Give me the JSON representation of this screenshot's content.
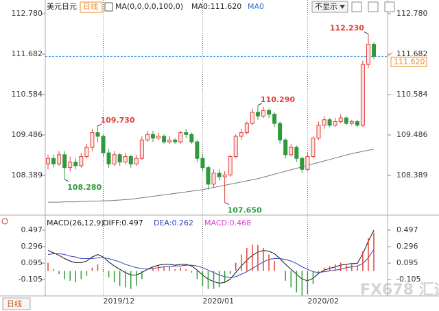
{
  "chart_data": [
    {
      "type": "candlestick",
      "title": "美元日元",
      "period": "日线",
      "ma_setting": "MA(0,0,0,0,100,0)",
      "ma_value": "MA0:111.620",
      "ma_name": "MA0",
      "dropdown": "不显示",
      "categories": [
        null,
        null,
        null,
        null,
        null,
        null,
        null,
        null,
        null,
        null,
        "2019/12",
        null,
        null,
        null,
        null,
        null,
        null,
        null,
        null,
        null,
        null,
        null,
        null,
        null,
        null,
        null,
        null,
        null,
        "2020/01",
        null,
        null,
        null,
        null,
        null,
        null,
        null,
        null,
        null,
        null,
        null,
        null,
        null,
        null,
        null,
        null,
        null,
        null,
        "2020/02",
        null,
        null,
        null,
        null,
        null,
        null,
        null,
        null,
        null,
        null,
        null,
        null
      ],
      "open": [
        108.7,
        108.85,
        108.7,
        108.95,
        108.6,
        108.75,
        108.65,
        108.9,
        109.15,
        109.55,
        109.45,
        109.0,
        108.7,
        108.95,
        108.75,
        108.9,
        108.7,
        108.85,
        109.35,
        109.5,
        109.4,
        109.45,
        109.3,
        109.35,
        109.3,
        109.55,
        109.5,
        109.3,
        108.85,
        108.6,
        108.15,
        108.45,
        108.35,
        108.4,
        108.9,
        109.45,
        109.55,
        109.8,
        110.1,
        110.0,
        110.15,
        110.05,
        109.8,
        109.35,
        108.95,
        109.15,
        108.85,
        108.55,
        108.9,
        109.4,
        109.75,
        109.9,
        109.75,
        109.85,
        109.95,
        109.8,
        109.85,
        109.75,
        111.4,
        111.95
      ],
      "high": [
        108.95,
        108.95,
        109.05,
        109.05,
        108.9,
        108.85,
        109.0,
        109.25,
        109.65,
        109.73,
        109.5,
        109.1,
        109.05,
        109.0,
        109.0,
        108.95,
        108.95,
        109.45,
        109.6,
        109.6,
        109.55,
        109.5,
        109.45,
        109.4,
        109.6,
        109.65,
        109.55,
        109.35,
        108.95,
        108.65,
        108.55,
        108.55,
        108.5,
        108.95,
        109.5,
        109.65,
        109.85,
        110.2,
        110.29,
        110.25,
        110.2,
        110.1,
        109.85,
        109.4,
        109.25,
        109.2,
        108.9,
        109.0,
        109.45,
        109.85,
        110.0,
        109.95,
        109.95,
        110.05,
        110.0,
        109.9,
        109.9,
        111.5,
        112.23,
        112.0
      ],
      "low": [
        108.55,
        108.6,
        108.65,
        108.28,
        108.5,
        108.55,
        108.6,
        108.85,
        109.05,
        109.3,
        108.9,
        108.6,
        108.65,
        108.65,
        108.7,
        108.6,
        108.65,
        108.8,
        109.3,
        109.3,
        109.35,
        109.25,
        109.25,
        109.25,
        109.25,
        109.4,
        109.25,
        108.75,
        108.5,
        108.0,
        108.05,
        108.25,
        107.65,
        108.35,
        108.85,
        109.35,
        109.5,
        109.75,
        109.9,
        109.95,
        109.95,
        109.7,
        109.25,
        108.85,
        108.9,
        108.75,
        108.45,
        108.5,
        108.85,
        109.35,
        109.65,
        109.7,
        109.7,
        109.8,
        109.75,
        109.75,
        109.7,
        109.7,
        111.3,
        111.55
      ],
      "close": [
        108.85,
        108.7,
        108.95,
        108.6,
        108.75,
        108.65,
        108.9,
        109.15,
        109.55,
        109.45,
        109.0,
        108.7,
        108.95,
        108.75,
        108.9,
        108.7,
        108.85,
        109.35,
        109.5,
        109.4,
        109.45,
        109.3,
        109.35,
        109.3,
        109.55,
        109.5,
        109.3,
        108.85,
        108.6,
        108.15,
        108.45,
        108.35,
        108.4,
        108.9,
        109.45,
        109.55,
        109.8,
        110.1,
        110.0,
        110.15,
        110.05,
        109.8,
        109.35,
        108.95,
        109.15,
        108.85,
        108.55,
        108.9,
        109.4,
        109.75,
        109.9,
        109.75,
        109.85,
        109.95,
        109.8,
        109.85,
        109.75,
        111.4,
        111.95,
        111.62
      ],
      "up_color": "#e0403a",
      "down_color": "#2e9a3c",
      "ma": {
        "color": "#777777",
        "values": [
          107.66,
          107.66,
          107.66,
          107.67,
          107.67,
          107.67,
          107.68,
          107.68,
          107.69,
          107.69,
          107.7,
          107.7,
          107.71,
          107.72,
          107.73,
          107.74,
          107.76,
          107.78,
          107.8,
          107.82,
          107.84,
          107.86,
          107.88,
          107.9,
          107.92,
          107.94,
          107.96,
          107.98,
          108.0,
          108.03,
          108.06,
          108.09,
          108.12,
          108.15,
          108.18,
          108.21,
          108.24,
          108.27,
          108.3,
          108.34,
          108.38,
          108.42,
          108.46,
          108.5,
          108.54,
          108.58,
          108.62,
          108.66,
          108.7,
          108.74,
          108.78,
          108.82,
          108.86,
          108.9,
          108.94,
          108.98,
          109.01,
          109.04,
          109.07,
          109.1
        ]
      },
      "last": {
        "value": 111.62,
        "label": "111.620",
        "color": "#f08a24",
        "line_color": "#3b8fd9"
      },
      "annotations": [
        {
          "value": 109.73,
          "label": "109.730"
        },
        {
          "value": 108.28,
          "label": "108.280"
        },
        {
          "value": 110.29,
          "label": "110.290"
        },
        {
          "value": 107.65,
          "label": "107.650"
        },
        {
          "value": 112.23,
          "label": "112.230"
        }
      ],
      "ylim": [
        107.347,
        113.003
      ],
      "yticks": [
        {
          "value": 112.78,
          "label": "112.780"
        },
        111.682,
        110.584,
        109.486,
        108.389
      ]
    },
    {
      "type": "macd",
      "title": "MACD(26,12,9)",
      "series": [
        {
          "name": "DIFF:0.497",
          "color": "#111111",
          "values": [
            0.25,
            0.22,
            0.19,
            0.15,
            0.12,
            0.1,
            0.1,
            0.12,
            0.17,
            0.2,
            0.17,
            0.11,
            0.06,
            0.02,
            -0.02,
            -0.05,
            -0.05,
            -0.02,
            0.02,
            0.05,
            0.07,
            0.08,
            0.08,
            0.07,
            0.08,
            0.08,
            0.06,
            0.01,
            -0.05,
            -0.1,
            -0.13,
            -0.15,
            -0.14,
            -0.1,
            -0.02,
            0.06,
            0.13,
            0.19,
            0.23,
            0.25,
            0.24,
            0.21,
            0.15,
            0.08,
            0.02,
            -0.04,
            -0.1,
            -0.12,
            -0.09,
            -0.03,
            0.01,
            0.03,
            0.05,
            0.07,
            0.08,
            0.09,
            0.09,
            0.21,
            0.36,
            0.497
          ]
        },
        {
          "name": "DEA:0.262",
          "color": "#2f3fb0",
          "values": [
            0.2,
            0.21,
            0.21,
            0.2,
            0.18,
            0.17,
            0.15,
            0.15,
            0.15,
            0.16,
            0.16,
            0.15,
            0.13,
            0.11,
            0.08,
            0.06,
            0.04,
            0.03,
            0.02,
            0.03,
            0.04,
            0.05,
            0.05,
            0.06,
            0.06,
            0.07,
            0.07,
            0.06,
            0.04,
            0.01,
            -0.02,
            -0.05,
            -0.07,
            -0.08,
            -0.07,
            -0.04,
            -0.01,
            0.03,
            0.07,
            0.11,
            0.14,
            0.15,
            0.15,
            0.14,
            0.12,
            0.09,
            0.05,
            0.02,
            -0.01,
            -0.02,
            -0.01,
            0.0,
            0.01,
            0.02,
            0.04,
            0.05,
            0.06,
            0.09,
            0.16,
            0.262
          ]
        },
        {
          "name": "MACD:0.468",
          "color": "#d93ad0",
          "type": "bar",
          "up_color": "#e0403a",
          "down_color": "#2e9a3c",
          "values": [
            0.1,
            0.02,
            -0.04,
            -0.1,
            -0.12,
            -0.14,
            -0.1,
            -0.06,
            0.04,
            0.08,
            0.02,
            -0.08,
            -0.14,
            -0.18,
            -0.2,
            -0.22,
            -0.18,
            -0.1,
            0.0,
            0.04,
            0.06,
            0.06,
            0.06,
            0.02,
            0.04,
            0.02,
            -0.02,
            -0.1,
            -0.18,
            -0.22,
            -0.22,
            -0.2,
            -0.14,
            -0.04,
            0.1,
            0.2,
            0.28,
            0.32,
            0.32,
            0.28,
            0.2,
            0.12,
            0.0,
            -0.12,
            -0.2,
            -0.26,
            -0.3,
            -0.28,
            -0.16,
            -0.02,
            0.04,
            0.06,
            0.08,
            0.1,
            0.08,
            0.08,
            0.06,
            0.24,
            0.4,
            0.468
          ]
        }
      ],
      "ylim": [
        -0.305,
        0.647
      ],
      "yticks": [
        0.497,
        0.296,
        0.095,
        -0.105
      ]
    }
  ],
  "watermark": "FX678 汇通网"
}
